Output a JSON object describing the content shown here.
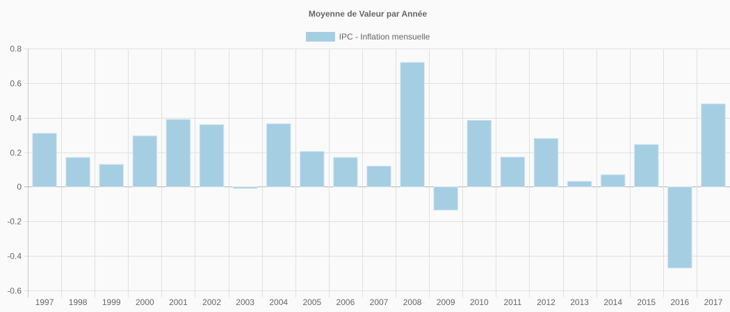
{
  "chart_data": {
    "type": "bar",
    "title": "Moyenne de Valeur par Année",
    "xlabel": "",
    "ylabel": "",
    "ylim": [
      -0.6,
      0.8
    ],
    "yticks": [
      "0.8",
      "0.6",
      "0.4",
      "0.2",
      "0",
      "-0.2",
      "-0.4",
      "-0.6"
    ],
    "grid": true,
    "legend_position": "top",
    "categories": [
      "1997",
      "1998",
      "1999",
      "2000",
      "2001",
      "2002",
      "2003",
      "2004",
      "2005",
      "2006",
      "2007",
      "2008",
      "2009",
      "2010",
      "2011",
      "2012",
      "2013",
      "2014",
      "2015",
      "2016",
      "2017"
    ],
    "series": [
      {
        "name": "IPC - Inflation mensuelle",
        "color": "#a6cee3",
        "values": [
          0.31,
          0.17,
          0.13,
          0.295,
          0.39,
          0.36,
          -0.01,
          0.365,
          0.205,
          0.17,
          0.12,
          0.72,
          -0.135,
          0.385,
          0.172,
          0.28,
          0.032,
          0.07,
          0.245,
          -0.47,
          0.48
        ]
      }
    ]
  }
}
